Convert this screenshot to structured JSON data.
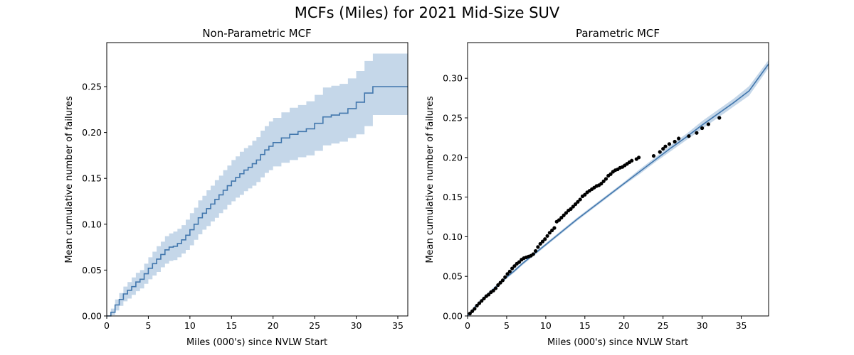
{
  "figure": {
    "title": "MCFs (Miles) for 2021 Mid-Size SUV"
  },
  "colors": {
    "line": "#4277ad",
    "band": "#c5d7e9",
    "points": "#000000",
    "axes": "#000000"
  },
  "chart_data": [
    {
      "type": "line",
      "subtype": "step-with-confidence-band",
      "title": "Non-Parametric MCF",
      "xlabel": "Miles (000's) since NVLW Start",
      "ylabel": "Mean cumulative number of failures",
      "xlim": [
        0,
        36.2
      ],
      "ylim": [
        0,
        0.298
      ],
      "xticks": [
        0,
        5,
        10,
        15,
        20,
        25,
        30,
        35
      ],
      "yticks": [
        0.0,
        0.05,
        0.1,
        0.15,
        0.2,
        0.25
      ],
      "grid": false,
      "series": [
        {
          "x": [
            0,
            0.5,
            1,
            1.5,
            2,
            2.5,
            3,
            3.5,
            4,
            4.5,
            5,
            5.5,
            6,
            6.5,
            7,
            7.5,
            8,
            8.5,
            9,
            9.5,
            10,
            10.5,
            11,
            11.5,
            12,
            12.5,
            13,
            13.5,
            14,
            14.5,
            15,
            15.5,
            16,
            16.5,
            17,
            17.5,
            18,
            18.5,
            19,
            19.5,
            20,
            21,
            22,
            23,
            24,
            25,
            26,
            27,
            28,
            29,
            30,
            31,
            32,
            33,
            34,
            35,
            36.2
          ],
          "y": [
            0.0,
            0.004,
            0.012,
            0.018,
            0.024,
            0.028,
            0.032,
            0.037,
            0.04,
            0.046,
            0.052,
            0.057,
            0.062,
            0.067,
            0.072,
            0.075,
            0.076,
            0.079,
            0.083,
            0.088,
            0.094,
            0.1,
            0.107,
            0.112,
            0.117,
            0.122,
            0.127,
            0.132,
            0.137,
            0.142,
            0.147,
            0.151,
            0.155,
            0.159,
            0.162,
            0.166,
            0.17,
            0.176,
            0.181,
            0.185,
            0.189,
            0.194,
            0.198,
            0.201,
            0.204,
            0.21,
            0.217,
            0.219,
            0.221,
            0.226,
            0.233,
            0.243,
            0.25,
            0.25,
            0.25,
            0.25,
            0.25
          ],
          "lower": [
            0.0,
            0.001,
            0.006,
            0.011,
            0.016,
            0.019,
            0.023,
            0.027,
            0.03,
            0.035,
            0.04,
            0.044,
            0.048,
            0.053,
            0.057,
            0.06,
            0.061,
            0.064,
            0.068,
            0.072,
            0.077,
            0.083,
            0.089,
            0.094,
            0.098,
            0.103,
            0.107,
            0.112,
            0.116,
            0.121,
            0.125,
            0.129,
            0.132,
            0.136,
            0.139,
            0.142,
            0.146,
            0.151,
            0.156,
            0.159,
            0.163,
            0.167,
            0.17,
            0.173,
            0.175,
            0.18,
            0.186,
            0.188,
            0.19,
            0.194,
            0.198,
            0.207,
            0.219,
            0.219,
            0.219,
            0.219,
            0.219
          ],
          "upper": [
            0.0,
            0.008,
            0.018,
            0.025,
            0.032,
            0.037,
            0.042,
            0.047,
            0.05,
            0.057,
            0.064,
            0.07,
            0.076,
            0.081,
            0.087,
            0.09,
            0.092,
            0.095,
            0.099,
            0.105,
            0.112,
            0.118,
            0.126,
            0.131,
            0.137,
            0.142,
            0.148,
            0.153,
            0.159,
            0.164,
            0.17,
            0.174,
            0.179,
            0.183,
            0.186,
            0.191,
            0.195,
            0.202,
            0.207,
            0.212,
            0.216,
            0.222,
            0.227,
            0.23,
            0.234,
            0.241,
            0.249,
            0.251,
            0.253,
            0.259,
            0.267,
            0.278,
            0.286,
            0.286,
            0.286,
            0.286,
            0.286
          ]
        }
      ]
    },
    {
      "type": "scatter",
      "subtype": "points-with-fitted-line-and-band",
      "title": "Parametric MCF",
      "xlabel": "Miles (000's) since NVLW Start",
      "ylabel": "Mean cumulative number of failures",
      "xlim": [
        0,
        38.5
      ],
      "ylim": [
        0,
        0.345
      ],
      "xticks": [
        0,
        5,
        10,
        15,
        20,
        25,
        30,
        35
      ],
      "yticks": [
        0.0,
        0.05,
        0.1,
        0.15,
        0.2,
        0.25,
        0.3
      ],
      "grid": false,
      "fit": {
        "x": [
          0,
          1,
          2,
          3,
          4,
          5,
          6,
          7,
          8,
          9,
          10,
          12,
          14,
          16,
          18,
          20,
          22,
          24,
          26,
          28,
          30,
          32,
          34,
          36,
          38.5
        ],
        "y": [
          0.0,
          0.012,
          0.022,
          0.031,
          0.04,
          0.049,
          0.057,
          0.066,
          0.074,
          0.082,
          0.09,
          0.106,
          0.122,
          0.137,
          0.152,
          0.167,
          0.182,
          0.197,
          0.212,
          0.226,
          0.241,
          0.255,
          0.269,
          0.284,
          0.318
        ],
        "lower": [
          0.0,
          0.01,
          0.02,
          0.029,
          0.038,
          0.047,
          0.055,
          0.064,
          0.072,
          0.08,
          0.088,
          0.104,
          0.12,
          0.135,
          0.15,
          0.165,
          0.179,
          0.194,
          0.208,
          0.222,
          0.236,
          0.25,
          0.264,
          0.278,
          0.313
        ],
        "upper": [
          0.0,
          0.014,
          0.024,
          0.033,
          0.042,
          0.051,
          0.059,
          0.068,
          0.076,
          0.084,
          0.092,
          0.108,
          0.124,
          0.139,
          0.154,
          0.169,
          0.185,
          0.2,
          0.216,
          0.23,
          0.246,
          0.26,
          0.274,
          0.29,
          0.323
        ]
      },
      "points": {
        "x": [
          0.3,
          0.6,
          0.9,
          1.2,
          1.5,
          1.8,
          2.1,
          2.4,
          2.7,
          3.0,
          3.3,
          3.6,
          3.9,
          4.2,
          4.5,
          4.8,
          5.1,
          5.4,
          5.7,
          6.0,
          6.3,
          6.6,
          6.9,
          7.2,
          7.5,
          7.8,
          8.1,
          8.4,
          8.7,
          9.0,
          9.3,
          9.6,
          9.9,
          10.2,
          10.5,
          10.8,
          11.1,
          11.4,
          11.7,
          12.0,
          12.3,
          12.6,
          12.9,
          13.2,
          13.5,
          13.8,
          14.1,
          14.4,
          14.7,
          15.0,
          15.3,
          15.6,
          15.9,
          16.2,
          16.5,
          16.8,
          17.1,
          17.4,
          17.7,
          18.0,
          18.3,
          18.6,
          18.9,
          19.2,
          19.5,
          19.8,
          20.1,
          20.4,
          20.7,
          21.0,
          21.6,
          21.9,
          23.8,
          24.6,
          25.0,
          25.3,
          25.8,
          26.5,
          27.0,
          28.3,
          29.3,
          30.0,
          30.8,
          32.2
        ],
        "y": [
          0.003,
          0.006,
          0.009,
          0.013,
          0.016,
          0.019,
          0.022,
          0.025,
          0.027,
          0.03,
          0.032,
          0.035,
          0.039,
          0.042,
          0.045,
          0.049,
          0.053,
          0.056,
          0.06,
          0.063,
          0.066,
          0.068,
          0.071,
          0.073,
          0.074,
          0.075,
          0.076,
          0.078,
          0.082,
          0.087,
          0.091,
          0.094,
          0.097,
          0.101,
          0.105,
          0.108,
          0.111,
          0.119,
          0.121,
          0.124,
          0.127,
          0.13,
          0.133,
          0.135,
          0.138,
          0.141,
          0.144,
          0.147,
          0.151,
          0.153,
          0.156,
          0.158,
          0.16,
          0.162,
          0.164,
          0.165,
          0.167,
          0.17,
          0.173,
          0.177,
          0.179,
          0.182,
          0.184,
          0.185,
          0.187,
          0.188,
          0.19,
          0.192,
          0.194,
          0.196,
          0.198,
          0.2,
          0.202,
          0.207,
          0.211,
          0.214,
          0.217,
          0.22,
          0.224,
          0.227,
          0.231,
          0.237,
          0.242,
          0.25
        ]
      }
    }
  ]
}
